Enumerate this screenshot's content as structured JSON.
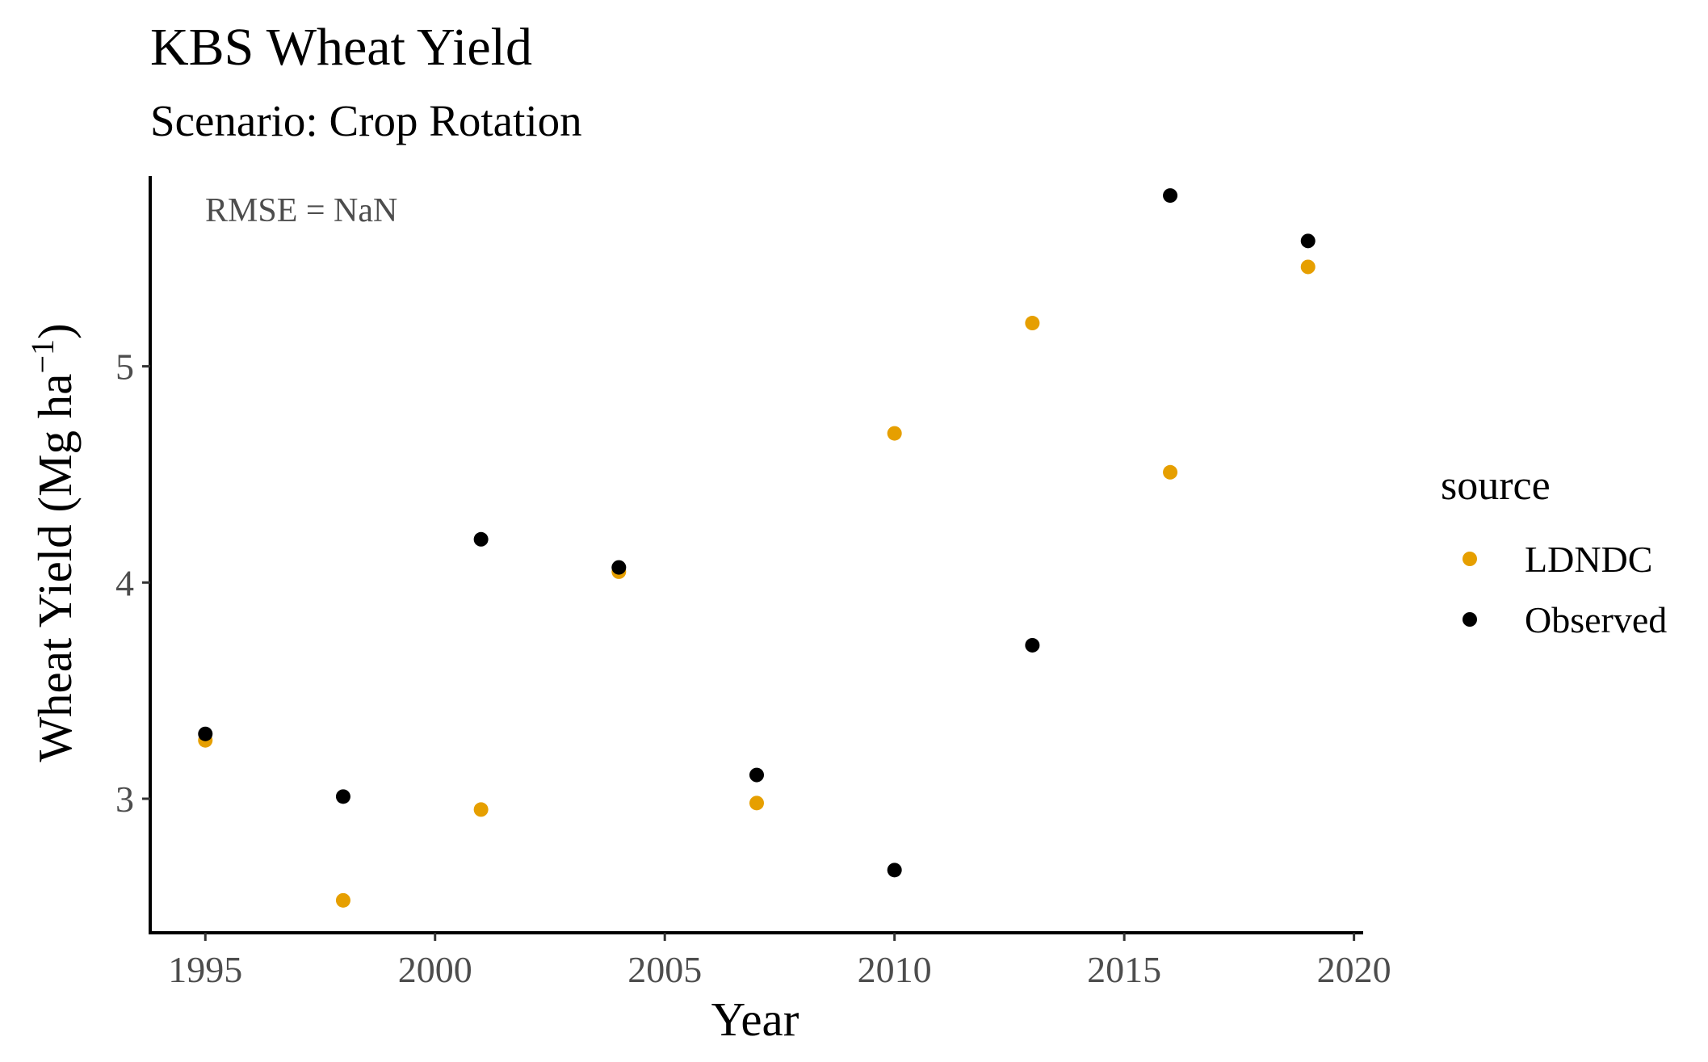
{
  "chart_data": {
    "type": "scatter",
    "title": "KBS Wheat Yield",
    "subtitle": "Scenario:  Crop Rotation",
    "xlabel": "Year",
    "ylabel": "Wheat Yield (Mg ha",
    "ylabel_sup": "−1",
    "ylabel_close": ")",
    "xlim": [
      1993.8,
      2020.2
    ],
    "ylim": [
      2.38,
      5.88
    ],
    "x_ticks": [
      1995,
      2000,
      2005,
      2010,
      2015,
      2020
    ],
    "y_ticks": [
      3,
      4,
      5
    ],
    "grid": false,
    "annotation": "RMSE = NaN",
    "legend": {
      "title": "source",
      "placement": "right"
    },
    "series": [
      {
        "name": "LDNDC",
        "color": "#E69F00",
        "x": [
          1995,
          1998,
          2001,
          2004,
          2007,
          2010,
          2013,
          2016,
          2019
        ],
        "y": [
          3.27,
          2.53,
          2.95,
          4.05,
          2.98,
          4.69,
          5.2,
          4.51,
          5.46
        ]
      },
      {
        "name": "Observed",
        "color": "#000000",
        "x": [
          1995,
          1998,
          2001,
          2004,
          2007,
          2010,
          2013,
          2016,
          2019
        ],
        "y": [
          3.3,
          3.01,
          4.2,
          4.07,
          3.11,
          2.67,
          3.71,
          5.79,
          5.58
        ]
      }
    ]
  }
}
